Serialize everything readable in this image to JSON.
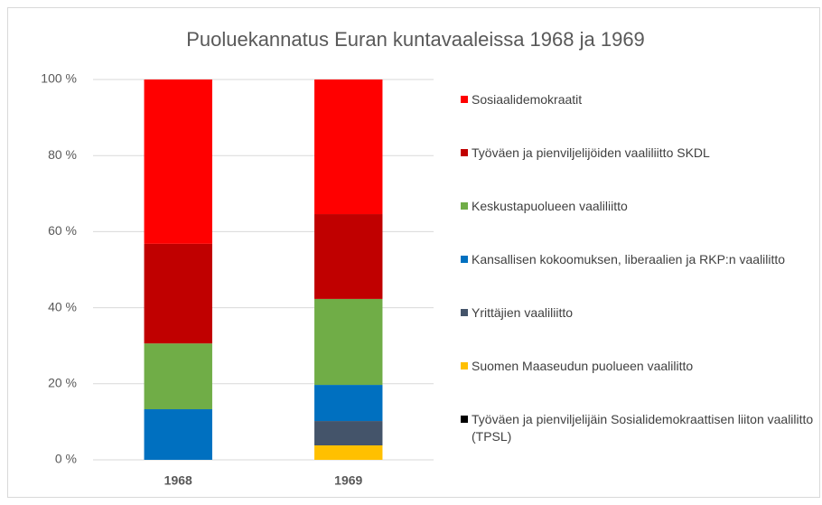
{
  "chart_data": {
    "type": "stacked_bar",
    "title": "Puoluekannatus Euran kuntavaaleissa 1968 ja 1969",
    "categories": [
      "1968",
      "1969"
    ],
    "series": [
      {
        "name": "Sosiaalidemokraatit",
        "color": "#ff0000",
        "values": [
          43.2,
          35.4
        ]
      },
      {
        "name": "Työväen ja pienviljelijöiden vaaliliitto SKDL",
        "color": "#c00000",
        "values": [
          26.2,
          22.3
        ]
      },
      {
        "name": "Keskustapuolueen vaaliliitto",
        "color": "#70ad47",
        "values": [
          17.3,
          22.6
        ]
      },
      {
        "name": "Kansallisen kokoomuksen, liberaalien ja RKP:n vaalilitto",
        "color": "#0070c0",
        "values": [
          13.3,
          9.5
        ]
      },
      {
        "name": "Yrittäjien vaaliliitto",
        "color": "#44546a",
        "values": [
          0,
          6.4
        ]
      },
      {
        "name": "Suomen Maaseudun puolueen vaalilitto",
        "color": "#ffc000",
        "values": [
          0,
          3.8
        ]
      },
      {
        "name": "Työväen ja pienviljelijäin Sosialidemokraattisen liiton vaalilitto (TPSL)",
        "color": "#000000",
        "values": [
          0,
          0
        ]
      }
    ],
    "ylim": [
      0,
      100
    ],
    "yticks": [
      {
        "value": 0,
        "label": "0 %"
      },
      {
        "value": 20,
        "label": "20 %"
      },
      {
        "value": 40,
        "label": "40 %"
      },
      {
        "value": 60,
        "label": "60 %"
      },
      {
        "value": 80,
        "label": "80 %"
      },
      {
        "value": 100,
        "label": "100 %"
      }
    ],
    "grid": true
  }
}
